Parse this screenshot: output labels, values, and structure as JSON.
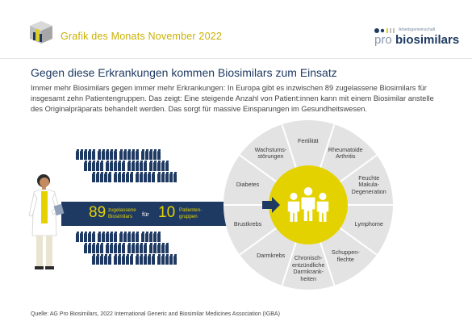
{
  "header": {
    "title": "Grafik des Monats November 2022",
    "brand_small": "Arbeitsgemeinschaft",
    "brand_pro": "pro",
    "brand_bio": "biosimilars",
    "accent_color": "#c9b000",
    "navy_color": "#1f3a62"
  },
  "headline": "Gegen diese Erkrankungen kommen Biosimilars zum Einsatz",
  "intro": "Immer mehr Biosimilars gegen immer mehr Erkrankungen: In Europa gibt es inzwischen 89 zugelassene Biosimilars für insgesamt zehn Patientengruppen. Das zeigt: Eine steigende Anzahl von Patient:innen kann mit einem Biosimilar anstelle des Originalpräparats behandelt werden. Das sorgt für massive Einsparungen im Gesundheitswesen.",
  "band": {
    "count_biosimilars": "89",
    "label_biosimilars_1": "zugelassene",
    "label_biosimilars_2": "Biosimilars",
    "for": "für",
    "count_groups": "10",
    "label_groups_1": "Patienten-",
    "label_groups_2": "gruppen"
  },
  "diseases": [
    [
      "Fertilität"
    ],
    [
      "Rheumatoide",
      "Arthritis"
    ],
    [
      "Feuchte",
      "Makula-",
      "Degeneration"
    ],
    [
      "Lymphome"
    ],
    [
      "Schuppen-",
      "flechte"
    ],
    [
      "Chronisch-",
      "entzündliche",
      "Darmkrank-",
      "heiten"
    ],
    [
      "Darmkrebs"
    ],
    [
      "Brustkrebs"
    ],
    [
      "Diabetes"
    ],
    [
      "Wachstums-",
      "störungen"
    ]
  ],
  "vial_count": 89,
  "source": "Quelle:  AG Pro Biosimilars, 2022 International Generic and Biosimilar Medicines Association (IGBA)"
}
